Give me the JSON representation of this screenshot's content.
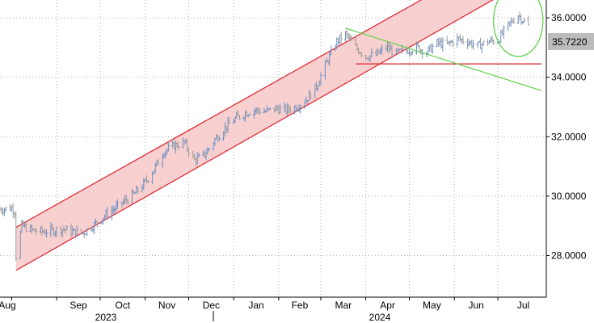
{
  "chart_data": {
    "type": "ohlc",
    "title": "",
    "xlabel": "",
    "ylabel": "",
    "grid": true,
    "ylim": [
      26.6,
      36.6
    ],
    "y_ticks": [
      "28.0000",
      "30.0000",
      "32.0000",
      "34.0000",
      "36.0000"
    ],
    "x_ticks": [
      "Aug",
      "Sep",
      "Oct",
      "Nov",
      "Dec",
      "Jan",
      "Feb",
      "Mar",
      "Apr",
      "May",
      "Jun",
      "Jul"
    ],
    "year_labels": [
      "2023",
      "2024"
    ],
    "last_price": "35.7220",
    "series": [
      {
        "color": "#6a8fc4",
        "down_color": "#9a9a9a",
        "close_path": [
          [
            "2023-07-24",
            29.55
          ],
          [
            "2023-08-01",
            29.6
          ],
          [
            "2023-08-03",
            29.5
          ],
          [
            "2023-08-04",
            28.0
          ],
          [
            "2023-08-08",
            29.0
          ],
          [
            "2023-08-15",
            28.85
          ],
          [
            "2023-08-22",
            28.8
          ],
          [
            "2023-08-29",
            28.85
          ],
          [
            "2023-09-05",
            28.9
          ],
          [
            "2023-09-12",
            28.8
          ],
          [
            "2023-09-19",
            28.75
          ],
          [
            "2023-09-26",
            29.0
          ],
          [
            "2023-10-03",
            29.3
          ],
          [
            "2023-10-10",
            29.55
          ],
          [
            "2023-10-17",
            29.8
          ],
          [
            "2023-10-24",
            30.05
          ],
          [
            "2023-10-31",
            30.4
          ],
          [
            "2023-11-07",
            30.9
          ],
          [
            "2023-11-14",
            31.5
          ],
          [
            "2023-11-21",
            31.7
          ],
          [
            "2023-11-28",
            31.8
          ],
          [
            "2023-12-05",
            31.2
          ],
          [
            "2023-12-12",
            31.4
          ],
          [
            "2023-12-19",
            31.9
          ],
          [
            "2023-12-26",
            32.3
          ],
          [
            "2024-01-02",
            32.6
          ],
          [
            "2024-01-09",
            32.8
          ],
          [
            "2024-01-16",
            32.9
          ],
          [
            "2024-01-23",
            32.85
          ],
          [
            "2024-01-30",
            32.95
          ],
          [
            "2024-02-06",
            32.9
          ],
          [
            "2024-02-13",
            33.0
          ],
          [
            "2024-02-20",
            33.25
          ],
          [
            "2024-02-27",
            33.7
          ],
          [
            "2024-03-05",
            34.5
          ],
          [
            "2024-03-12",
            35.2
          ],
          [
            "2024-03-18",
            35.45
          ],
          [
            "2024-03-25",
            35.0
          ],
          [
            "2024-04-01",
            34.7
          ],
          [
            "2024-04-08",
            34.75
          ],
          [
            "2024-04-15",
            35.0
          ],
          [
            "2024-04-22",
            34.8
          ],
          [
            "2024-04-29",
            34.9
          ],
          [
            "2024-05-06",
            35.0
          ],
          [
            "2024-05-13",
            34.85
          ],
          [
            "2024-05-20",
            35.15
          ],
          [
            "2024-05-27",
            35.1
          ],
          [
            "2024-06-03",
            35.3
          ],
          [
            "2024-06-10",
            35.2
          ],
          [
            "2024-06-17",
            35.05
          ],
          [
            "2024-06-24",
            35.2
          ],
          [
            "2024-07-01",
            35.25
          ],
          [
            "2024-07-08",
            35.75
          ],
          [
            "2024-07-15",
            36.1
          ],
          [
            "2024-07-22",
            35.72
          ]
        ]
      }
    ],
    "annotations": [
      {
        "kind": "channel",
        "color": "#e0202a",
        "fill": "#f9d0d0",
        "lower": [
          [
            "2023-08-04",
            27.5
          ],
          [
            "2024-07-10",
            36.95
          ]
        ],
        "upper": [
          [
            "2023-08-04",
            28.95
          ],
          [
            "2024-07-10",
            38.3
          ]
        ]
      },
      {
        "kind": "line",
        "color": "#e0202a",
        "points": [
          [
            "2024-03-25",
            34.45
          ],
          [
            "2024-07-31",
            34.45
          ]
        ]
      },
      {
        "kind": "line",
        "color": "#60d04a",
        "points": [
          [
            "2024-03-18",
            35.65
          ],
          [
            "2024-07-31",
            33.55
          ]
        ]
      },
      {
        "kind": "ellipse",
        "color": "#60d04a",
        "center": [
          "2024-07-15",
          35.9
        ],
        "x_halfwidth_days": 17,
        "y_halfheight": 1.2
      }
    ]
  }
}
